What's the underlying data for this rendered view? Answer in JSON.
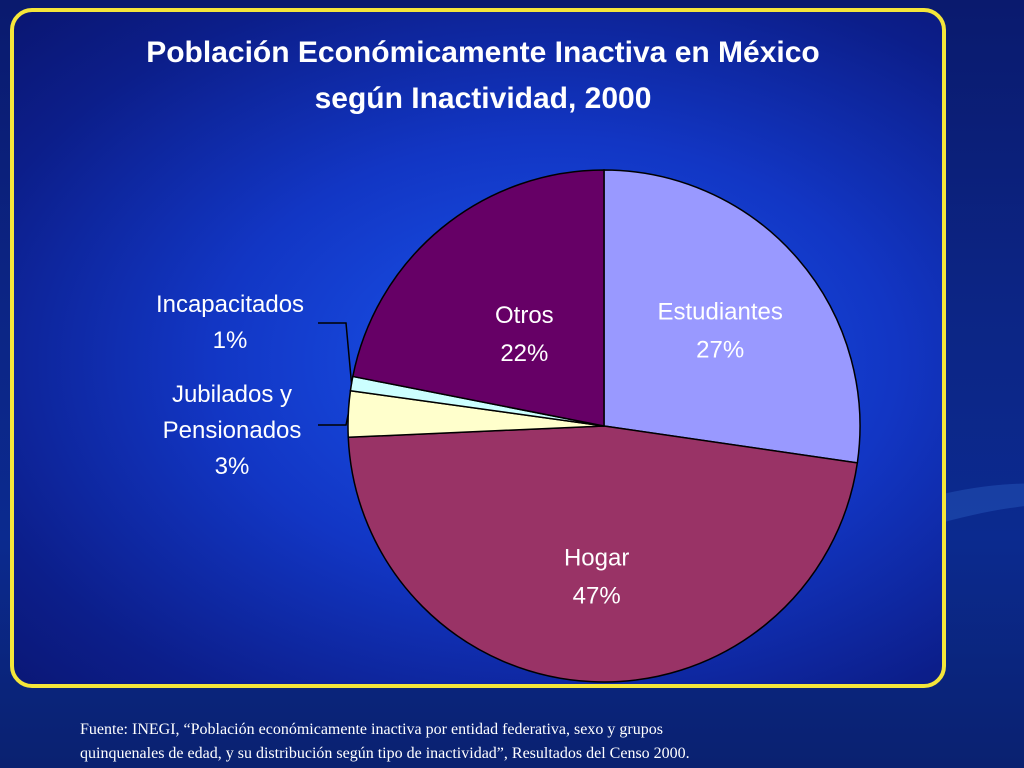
{
  "chart_data": {
    "type": "pie",
    "title_line1": "Población Económicamente Inactiva en México",
    "title_line2": "según Inactividad, 2000",
    "slices": [
      {
        "label": "Estudiantes",
        "pct_label": "27%",
        "value": 27.3,
        "color": "#9999ff"
      },
      {
        "label": "Hogar",
        "pct_label": "47%",
        "value": 47.0,
        "color": "#993366"
      },
      {
        "label": "Jubilados y Pensionados",
        "pct_label": "3%",
        "value": 2.9,
        "color": "#ffffcc"
      },
      {
        "label": "Incapacitados",
        "pct_label": "1%",
        "value": 0.9,
        "color": "#ccffff"
      },
      {
        "label": "Otros",
        "pct_label": "22%",
        "value": 21.9,
        "color": "#660066"
      }
    ],
    "legend": "none"
  },
  "footer": {
    "line1": "Fuente:  INEGI, “Población económicamente inactiva por entidad federativa, sexo y grupos",
    "line2": "quinquenales de edad, y su distribución según tipo de inactividad”, Resultados del Censo 2000."
  }
}
